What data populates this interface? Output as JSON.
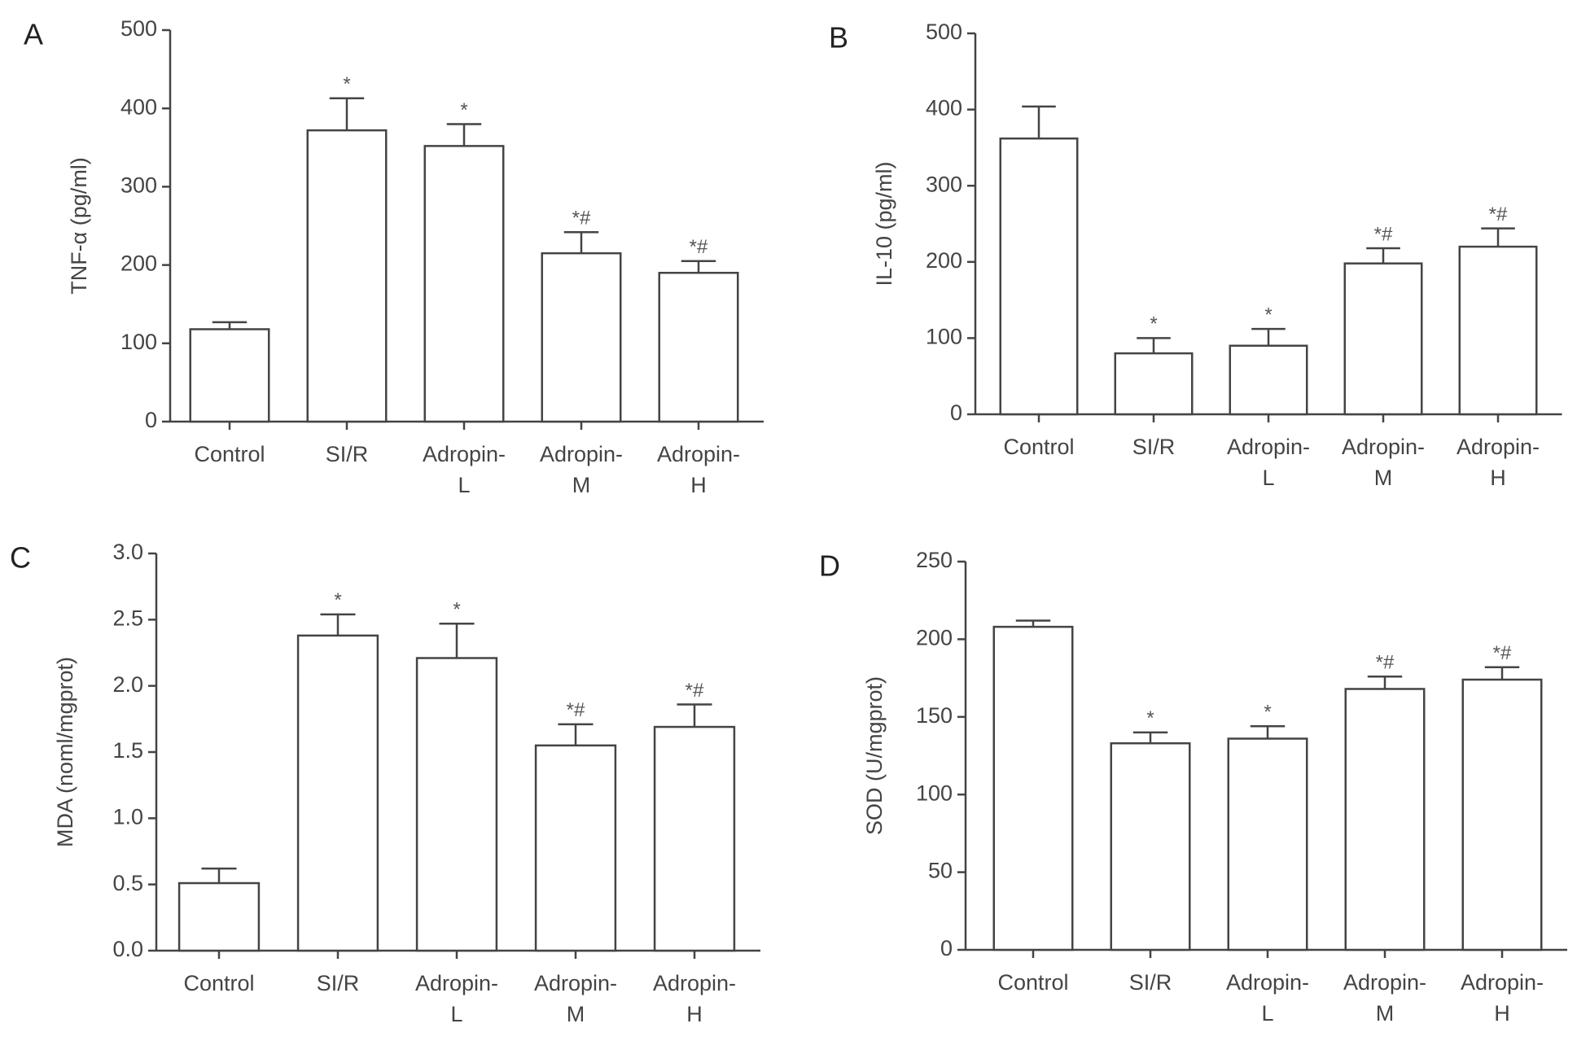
{
  "chart_data": [
    {
      "type": "bar",
      "panel": "A",
      "ylabel": "TNF-α (pg/ml)",
      "categories": [
        [
          "Control"
        ],
        [
          "SI/R"
        ],
        [
          "Adropin-",
          "L"
        ],
        [
          "Adropin-",
          "M"
        ],
        [
          "Adropin-",
          "H"
        ]
      ],
      "values": [
        118,
        372,
        352,
        215,
        190
      ],
      "errors": [
        9,
        41,
        28,
        27,
        15
      ],
      "annotations": [
        null,
        "*",
        "*",
        "*#",
        "*#"
      ],
      "ylim": [
        0,
        500
      ],
      "yticks": [
        0,
        100,
        200,
        300,
        400,
        500
      ]
    },
    {
      "type": "bar",
      "panel": "B",
      "ylabel": "IL-10 (pg/ml)",
      "categories": [
        [
          "Control"
        ],
        [
          "SI/R"
        ],
        [
          "Adropin-",
          "L"
        ],
        [
          "Adropin-",
          "M"
        ],
        [
          "Adropin-",
          "H"
        ]
      ],
      "values": [
        362,
        80,
        90,
        198,
        220
      ],
      "errors": [
        42,
        20,
        22,
        20,
        24
      ],
      "annotations": [
        null,
        "*",
        "*",
        "*#",
        "*#"
      ],
      "ylim": [
        0,
        500
      ],
      "yticks": [
        0,
        100,
        200,
        300,
        400,
        500
      ]
    },
    {
      "type": "bar",
      "panel": "C",
      "ylabel": "MDA (noml/mgprot)",
      "categories": [
        [
          "Control"
        ],
        [
          "SI/R"
        ],
        [
          "Adropin-",
          "L"
        ],
        [
          "Adropin-",
          "M"
        ],
        [
          "Adropin-",
          "H"
        ]
      ],
      "values": [
        0.51,
        2.38,
        2.21,
        1.55,
        1.69
      ],
      "errors": [
        0.11,
        0.16,
        0.26,
        0.16,
        0.17
      ],
      "annotations": [
        null,
        "*",
        "*",
        "*#",
        "*#"
      ],
      "ylim": [
        0,
        3
      ],
      "yticks": [
        {
          "value": 0,
          "label": "0.0"
        },
        0.5,
        {
          "value": 1,
          "label": "1.0"
        },
        1.5,
        {
          "value": 2,
          "label": "2.0"
        },
        2.5,
        {
          "value": 3,
          "label": "3.0"
        }
      ]
    },
    {
      "type": "bar",
      "panel": "D",
      "ylabel": "SOD (U/mgprot)",
      "categories": [
        [
          "Control"
        ],
        [
          "SI/R"
        ],
        [
          "Adropin-",
          "L"
        ],
        [
          "Adropin-",
          "M"
        ],
        [
          "Adropin-",
          "H"
        ]
      ],
      "values": [
        208,
        133,
        136,
        168,
        174
      ],
      "errors": [
        4,
        7,
        8,
        8,
        8
      ],
      "annotations": [
        null,
        "*",
        "*",
        "*#",
        "*#"
      ],
      "ylim": [
        0,
        250
      ],
      "yticks": [
        0,
        50,
        100,
        150,
        200,
        250
      ]
    }
  ]
}
